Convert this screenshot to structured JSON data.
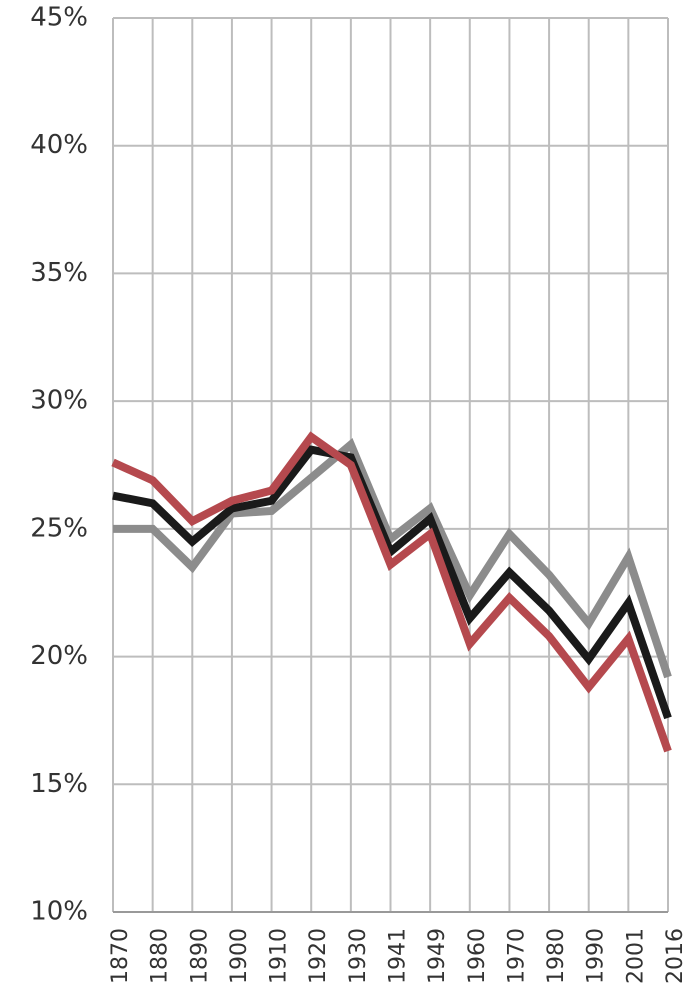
{
  "chart_data": {
    "type": "line",
    "categories": [
      "1870",
      "1880",
      "1890",
      "1900",
      "1910",
      "1920",
      "1930",
      "1941",
      "1949",
      "1960",
      "1970",
      "1980",
      "1990",
      "2001",
      "2016"
    ],
    "series": [
      {
        "color": "#8c8c8c",
        "values": [
          25.0,
          25.0,
          23.5,
          25.6,
          25.7,
          27.0,
          28.3,
          24.6,
          25.8,
          22.4,
          24.8,
          23.2,
          21.3,
          23.9,
          19.2
        ]
      },
      {
        "color": "#1a1a1a",
        "values": [
          26.3,
          26.0,
          24.5,
          25.8,
          26.1,
          28.1,
          27.8,
          24.1,
          25.4,
          21.5,
          23.3,
          21.8,
          19.9,
          22.1,
          17.6
        ]
      },
      {
        "color": "#b5494e",
        "values": [
          27.6,
          26.9,
          25.3,
          26.1,
          26.5,
          28.6,
          27.5,
          23.6,
          24.8,
          20.5,
          22.3,
          20.8,
          18.8,
          20.7,
          16.3
        ]
      }
    ],
    "ylim": [
      10,
      45
    ],
    "yticks": [
      {
        "value": 10,
        "label": "10%"
      },
      {
        "value": 15,
        "label": "15%"
      },
      {
        "value": 20,
        "label": "20%"
      },
      {
        "value": 25,
        "label": "25%"
      },
      {
        "value": 30,
        "label": "30%"
      },
      {
        "value": 35,
        "label": "35%"
      },
      {
        "value": 40,
        "label": "40%"
      },
      {
        "value": 45,
        "label": "45%"
      }
    ],
    "grid": true
  }
}
